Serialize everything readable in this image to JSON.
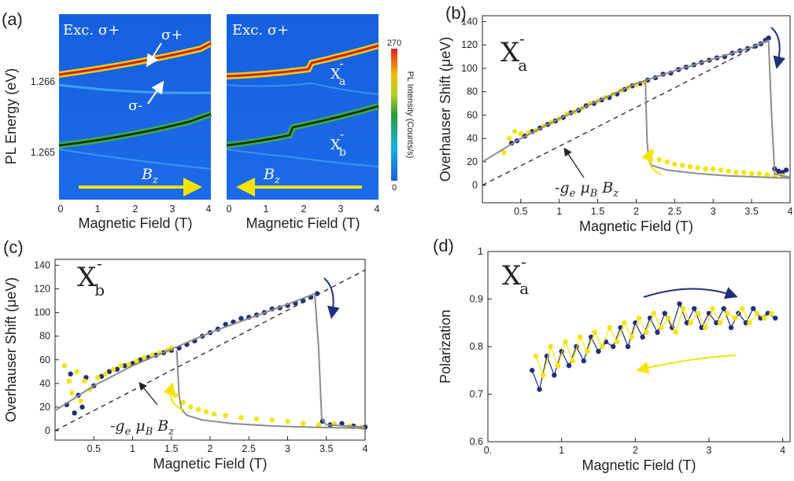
{
  "panels": {
    "a": {
      "label": "(a)",
      "ylabel": "PL Energy (eV)",
      "xlabel": "Magnetic Field (T)",
      "yticks": [
        "1.266",
        "1.265"
      ],
      "xticks": [
        "0",
        "1",
        "2",
        "3",
        "4"
      ],
      "left_map": {
        "title": "Exc. σ+",
        "ann_top": "σ+",
        "ann_mid": "σ-",
        "field_label": "B",
        "field_sub": "z"
      },
      "right_map": {
        "title": "Exc. σ+",
        "xa_label": "X",
        "xa_sub": "a",
        "xa_sup": "-",
        "xb_label": "X",
        "xb_sub": "b",
        "xb_sup": "-",
        "field_label": "B",
        "field_sub": "z"
      },
      "colorbar": {
        "label": "PL Intensity (Counts/s)",
        "max": "270",
        "min": "0"
      }
    },
    "b": {
      "label": "(b)",
      "big_label": "X",
      "big_sub": "a",
      "big_sup": "-",
      "ann": "-g",
      "ann_e": "e",
      "ann_mu": " μ",
      "ann_B": "B",
      "ann_Bz": " B",
      "ann_z": "z"
    },
    "c": {
      "label": "(c)",
      "big_label": "X",
      "big_sub": "b",
      "big_sup": "-",
      "ann": "-g",
      "ann_e": "e",
      "ann_mu": " μ",
      "ann_B": "B",
      "ann_Bz": " B",
      "ann_z": "z"
    },
    "d": {
      "label": "(d)",
      "big_label": "X",
      "big_sub": "a",
      "big_sup": "-"
    }
  },
  "colors": {
    "up": "#1f2f7a",
    "down": "#f5e400",
    "fit": "#8c8c8c",
    "arrow_blue": "#1f2f7a",
    "arrow_yellow": "#f5e400"
  },
  "chart_data": [
    {
      "panel": "b",
      "type": "scatter",
      "title": "",
      "xlabel": "Magnetic Field (T)",
      "ylabel": "Overhauser Shift (μeV)",
      "xlim": [
        0,
        4
      ],
      "ylim": [
        -15,
        145
      ],
      "xticks": [
        0.5,
        1,
        1.5,
        2,
        2.5,
        3,
        3.5,
        4
      ],
      "xtick_labels": [
        "0.5",
        "1",
        "1.5",
        "2",
        "2.5",
        "3",
        "3.5",
        "4"
      ],
      "yticks": [
        0,
        20,
        40,
        60,
        80,
        100,
        120,
        140
      ],
      "ytick_labels": [
        "0",
        "20",
        "40",
        "60",
        "80",
        "100",
        "120",
        "140"
      ],
      "dashed_line": {
        "x": [
          0,
          3.75
        ],
        "y": [
          0,
          125
        ]
      },
      "fit_up": {
        "x": [
          0.0,
          0.5,
          1.0,
          1.5,
          2.0,
          2.5,
          3.0,
          3.5,
          3.72,
          3.76,
          3.8,
          3.9,
          4.0
        ],
        "y": [
          20,
          40,
          57,
          72,
          87,
          98,
          108,
          118,
          124,
          60,
          10,
          8,
          7
        ]
      },
      "fit_down": {
        "x": [
          2.12,
          2.14,
          2.16,
          2.2,
          2.4,
          2.8,
          3.2,
          3.6,
          4.0
        ],
        "y": [
          88,
          40,
          22,
          17,
          13,
          10,
          8,
          7,
          6
        ]
      },
      "series": [
        {
          "name": "up sweep",
          "color": "#1f2f7a",
          "x": [
            0.38,
            0.45,
            0.55,
            0.65,
            0.75,
            0.85,
            0.95,
            1.05,
            1.15,
            1.25,
            1.35,
            1.45,
            1.55,
            1.65,
            1.75,
            1.85,
            1.95,
            2.05,
            2.15,
            2.25,
            2.35,
            2.45,
            2.55,
            2.65,
            2.75,
            2.85,
            2.95,
            3.05,
            3.15,
            3.25,
            3.35,
            3.45,
            3.55,
            3.62,
            3.68,
            3.72,
            3.8,
            3.85,
            3.9,
            3.95
          ],
          "y": [
            36,
            38,
            42,
            46,
            49,
            52,
            55,
            58,
            62,
            64,
            68,
            70,
            73,
            75,
            78,
            82,
            85,
            87,
            90,
            92,
            95,
            96,
            99,
            101,
            103,
            105,
            107,
            109,
            110,
            113,
            115,
            117,
            119,
            121,
            124,
            126,
            14,
            12,
            11,
            13
          ]
        },
        {
          "name": "down sweep",
          "color": "#f5e400",
          "x": [
            0.28,
            0.35,
            0.42,
            0.5,
            0.6,
            0.7,
            0.8,
            0.9,
            1.0,
            1.1,
            1.2,
            1.3,
            1.4,
            1.5,
            1.6,
            1.7,
            1.8,
            1.9,
            2.0,
            2.1,
            2.2,
            2.3,
            2.4,
            2.5,
            2.6,
            2.7,
            2.8,
            2.9,
            3.0,
            3.1,
            3.2,
            3.3,
            3.4,
            3.5,
            3.6,
            3.7,
            3.8,
            3.9
          ],
          "y": [
            28,
            40,
            46,
            44,
            45,
            47,
            51,
            54,
            57,
            61,
            63,
            66,
            70,
            72,
            75,
            78,
            81,
            84,
            86,
            88,
            28,
            22,
            20,
            18,
            17,
            16,
            15,
            14,
            14,
            13,
            12,
            11,
            11,
            10,
            10,
            9,
            8,
            8
          ]
        }
      ]
    },
    {
      "panel": "c",
      "type": "scatter",
      "title": "",
      "xlabel": "Magnetic Field (T)",
      "ylabel": "Overhauser Shift (μeV)",
      "xlim": [
        0,
        4
      ],
      "ylim": [
        -8,
        145
      ],
      "xticks": [
        0.5,
        1,
        1.5,
        2,
        2.5,
        3,
        3.5,
        4
      ],
      "xtick_labels": [
        "0.5",
        "1",
        "1.5",
        "2",
        "2.5",
        "3",
        "3.5",
        "4"
      ],
      "yticks": [
        0,
        20,
        40,
        60,
        80,
        100,
        120,
        140
      ],
      "ytick_labels": [
        "0",
        "20",
        "40",
        "60",
        "80",
        "100",
        "120",
        "140"
      ],
      "dashed_line": {
        "x": [
          0,
          4
        ],
        "y": [
          0,
          136
        ]
      },
      "fit_up": {
        "x": [
          0.0,
          0.5,
          1.0,
          1.5,
          2.0,
          2.5,
          3.0,
          3.35,
          3.4,
          3.44,
          3.5,
          4.0
        ],
        "y": [
          17,
          38,
          55,
          69,
          83,
          95,
          107,
          116,
          70,
          10,
          5,
          3
        ]
      },
      "fit_down": {
        "x": [
          1.57,
          1.6,
          1.63,
          1.7,
          1.9,
          2.3,
          2.8,
          3.3,
          4.0
        ],
        "y": [
          68,
          30,
          18,
          13,
          9,
          6,
          4,
          3,
          2
        ]
      },
      "series": [
        {
          "name": "up sweep",
          "color": "#1f2f7a",
          "x": [
            0.15,
            0.2,
            0.25,
            0.3,
            0.35,
            0.4,
            0.5,
            0.6,
            0.7,
            0.8,
            0.9,
            1.0,
            1.1,
            1.2,
            1.3,
            1.4,
            1.5,
            1.6,
            1.7,
            1.8,
            1.9,
            2.0,
            2.1,
            2.2,
            2.3,
            2.4,
            2.5,
            2.6,
            2.7,
            2.8,
            2.9,
            3.0,
            3.1,
            3.2,
            3.3,
            3.38,
            3.45,
            3.55,
            3.7,
            3.85,
            4.0
          ],
          "y": [
            22,
            48,
            15,
            30,
            20,
            45,
            38,
            46,
            50,
            52,
            55,
            57,
            60,
            62,
            64,
            66,
            68,
            70,
            73,
            76,
            80,
            83,
            86,
            90,
            92,
            95,
            96,
            98,
            100,
            103,
            104,
            106,
            108,
            110,
            113,
            116,
            8,
            5,
            6,
            4,
            3
          ]
        },
        {
          "name": "down sweep",
          "color": "#f5e400",
          "x": [
            0.12,
            0.18,
            0.22,
            0.28,
            0.33,
            0.38,
            0.45,
            0.55,
            0.65,
            0.75,
            0.85,
            0.95,
            1.05,
            1.15,
            1.25,
            1.35,
            1.45,
            1.5,
            1.55,
            1.65,
            1.75,
            1.85,
            1.95,
            2.05,
            2.2,
            2.4,
            2.6,
            2.8,
            3.0,
            3.2,
            3.4,
            3.6,
            3.8,
            3.95
          ],
          "y": [
            55,
            42,
            32,
            50,
            25,
            42,
            35,
            45,
            48,
            52,
            55,
            56,
            59,
            62,
            64,
            66,
            68,
            70,
            30,
            24,
            20,
            18,
            16,
            14,
            13,
            11,
            10,
            9,
            8,
            6,
            5,
            6,
            4,
            3
          ]
        }
      ]
    },
    {
      "panel": "d",
      "type": "line",
      "title": "",
      "xlabel": "Magnetic Field (T)",
      "ylabel": "Polarization",
      "xlim": [
        0,
        4.1
      ],
      "ylim": [
        0.6,
        1.0
      ],
      "xticks": [
        0,
        1,
        2,
        3,
        4
      ],
      "xtick_labels": [
        "0.",
        "1",
        "2",
        "3",
        "4"
      ],
      "yticks": [
        0.6,
        0.7,
        0.8,
        0.9,
        1.0
      ],
      "ytick_labels": [
        "0.6",
        "0.7",
        "0.8",
        "0.9",
        "1"
      ],
      "series": [
        {
          "name": "up sweep",
          "color": "#1f2f7a",
          "x": [
            0.6,
            0.7,
            0.8,
            0.9,
            1.0,
            1.1,
            1.2,
            1.3,
            1.4,
            1.5,
            1.6,
            1.7,
            1.8,
            1.9,
            2.0,
            2.1,
            2.2,
            2.3,
            2.4,
            2.5,
            2.6,
            2.7,
            2.8,
            2.9,
            3.0,
            3.1,
            3.2,
            3.3,
            3.4,
            3.5,
            3.6,
            3.7,
            3.8,
            3.9
          ],
          "y": [
            0.75,
            0.71,
            0.78,
            0.74,
            0.79,
            0.76,
            0.8,
            0.77,
            0.82,
            0.79,
            0.81,
            0.8,
            0.84,
            0.8,
            0.85,
            0.82,
            0.86,
            0.83,
            0.87,
            0.84,
            0.89,
            0.85,
            0.88,
            0.84,
            0.87,
            0.85,
            0.88,
            0.84,
            0.87,
            0.85,
            0.88,
            0.86,
            0.87,
            0.86
          ]
        },
        {
          "name": "down sweep",
          "color": "#f5e400",
          "x": [
            0.65,
            0.75,
            0.85,
            0.95,
            1.05,
            1.15,
            1.25,
            1.35,
            1.45,
            1.55,
            1.65,
            1.75,
            1.85,
            1.95,
            2.05,
            2.15,
            2.25,
            2.35,
            2.45,
            2.55,
            2.65,
            2.75,
            2.85,
            2.95,
            3.05,
            3.15,
            3.25,
            3.35,
            3.45,
            3.55,
            3.65,
            3.75,
            3.85
          ],
          "y": [
            0.78,
            0.74,
            0.8,
            0.76,
            0.81,
            0.77,
            0.82,
            0.79,
            0.83,
            0.8,
            0.84,
            0.81,
            0.85,
            0.82,
            0.86,
            0.83,
            0.87,
            0.84,
            0.86,
            0.83,
            0.88,
            0.85,
            0.87,
            0.84,
            0.88,
            0.85,
            0.87,
            0.86,
            0.88,
            0.85,
            0.87,
            0.86,
            0.87
          ]
        }
      ]
    }
  ]
}
